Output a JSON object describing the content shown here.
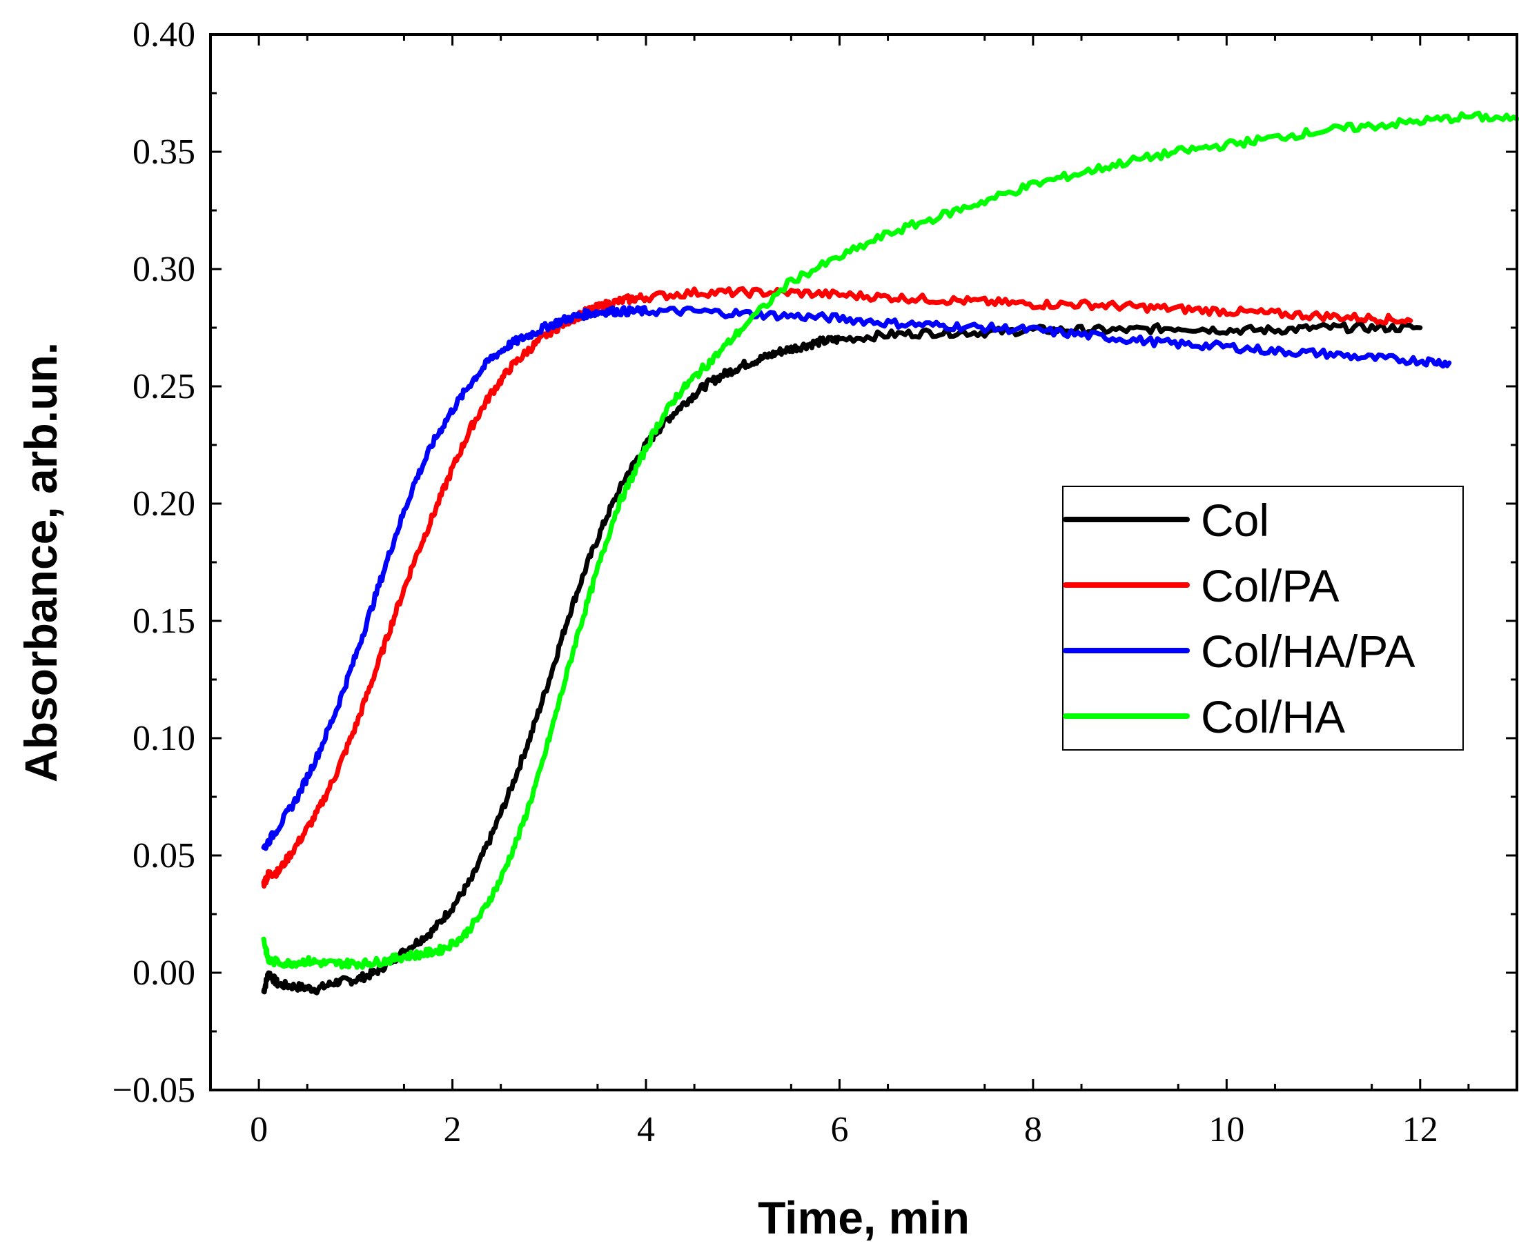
{
  "chart_data": {
    "type": "line",
    "title": "",
    "xlabel": "Time, min",
    "ylabel": "Absorbance, arb.un.",
    "xlim": [
      -0.5,
      13
    ],
    "ylim": [
      -0.05,
      0.4
    ],
    "xticks": [
      0,
      2,
      4,
      6,
      8,
      10,
      12
    ],
    "xtick_labels": [
      "0",
      "2",
      "4",
      "6",
      "8",
      "10",
      "12"
    ],
    "yticks": [
      -0.05,
      0.0,
      0.05,
      0.1,
      0.15,
      0.2,
      0.25,
      0.3,
      0.35,
      0.4
    ],
    "ytick_labels": [
      "−0.05",
      "0.00",
      "0.05",
      "0.10",
      "0.15",
      "0.20",
      "0.25",
      "0.30",
      "0.35",
      "0.40"
    ],
    "grid": false,
    "legend_position": "right-middle",
    "series": [
      {
        "name": "Col",
        "color": "#000000",
        "x": [
          0.05,
          0.1,
          0.2,
          0.4,
          0.6,
          0.8,
          1.0,
          1.2,
          1.4,
          1.6,
          1.8,
          2.0,
          2.2,
          2.4,
          2.6,
          2.8,
          3.0,
          3.2,
          3.4,
          3.6,
          3.8,
          4.0,
          4.2,
          4.4,
          4.6,
          4.8,
          5.0,
          5.2,
          5.4,
          5.6,
          5.8,
          6.0,
          6.5,
          7.0,
          7.5,
          8.0,
          8.5,
          9.0,
          9.5,
          10.0,
          10.5,
          11.0,
          11.5,
          12.0
        ],
        "y": [
          -0.008,
          0.0,
          -0.005,
          -0.006,
          -0.007,
          -0.004,
          -0.003,
          0.0,
          0.006,
          0.012,
          0.018,
          0.028,
          0.04,
          0.058,
          0.078,
          0.1,
          0.125,
          0.152,
          0.175,
          0.195,
          0.212,
          0.225,
          0.235,
          0.243,
          0.25,
          0.255,
          0.259,
          0.262,
          0.265,
          0.267,
          0.269,
          0.27,
          0.272,
          0.273,
          0.273,
          0.274,
          0.274,
          0.274,
          0.275,
          0.274,
          0.274,
          0.275,
          0.275,
          0.275
        ]
      },
      {
        "name": "Col/PA",
        "color": "#ff0000",
        "x": [
          0.05,
          0.1,
          0.2,
          0.4,
          0.6,
          0.8,
          1.0,
          1.2,
          1.4,
          1.6,
          1.8,
          2.0,
          2.2,
          2.4,
          2.6,
          2.8,
          3.0,
          3.2,
          3.4,
          3.6,
          3.8,
          4.0,
          4.5,
          5.0,
          5.5,
          6.0,
          6.5,
          7.0,
          7.5,
          8.0,
          8.5,
          9.0,
          9.5,
          10.0,
          10.5,
          11.0,
          11.5,
          11.9
        ],
        "y": [
          0.038,
          0.042,
          0.043,
          0.055,
          0.068,
          0.085,
          0.105,
          0.128,
          0.152,
          0.175,
          0.195,
          0.215,
          0.233,
          0.247,
          0.258,
          0.266,
          0.273,
          0.278,
          0.282,
          0.285,
          0.287,
          0.288,
          0.29,
          0.29,
          0.29,
          0.289,
          0.288,
          0.287,
          0.286,
          0.285,
          0.285,
          0.284,
          0.283,
          0.282,
          0.281,
          0.28,
          0.279,
          0.278
        ]
      },
      {
        "name": "Col/HA/PA",
        "color": "#0000ff",
        "x": [
          0.05,
          0.2,
          0.4,
          0.6,
          0.8,
          1.0,
          1.2,
          1.4,
          1.6,
          1.8,
          2.0,
          2.2,
          2.4,
          2.6,
          2.8,
          3.0,
          3.2,
          3.4,
          3.6,
          3.8,
          4.0,
          4.5,
          5.0,
          5.5,
          6.0,
          6.5,
          7.0,
          7.5,
          8.0,
          8.5,
          9.0,
          9.5,
          10.0,
          10.5,
          11.0,
          11.5,
          12.0,
          12.3
        ],
        "y": [
          0.053,
          0.062,
          0.075,
          0.092,
          0.112,
          0.135,
          0.16,
          0.185,
          0.208,
          0.226,
          0.24,
          0.252,
          0.262,
          0.268,
          0.272,
          0.276,
          0.279,
          0.281,
          0.282,
          0.282,
          0.282,
          0.282,
          0.281,
          0.28,
          0.279,
          0.277,
          0.276,
          0.275,
          0.274,
          0.272,
          0.27,
          0.268,
          0.267,
          0.265,
          0.264,
          0.262,
          0.261,
          0.26
        ]
      },
      {
        "name": "Col/HA",
        "color": "#00ff00",
        "x": [
          0.05,
          0.1,
          0.3,
          0.5,
          0.7,
          0.9,
          1.1,
          1.3,
          1.5,
          1.7,
          1.9,
          2.1,
          2.3,
          2.5,
          2.7,
          2.9,
          3.1,
          3.3,
          3.5,
          3.7,
          3.9,
          4.1,
          4.3,
          4.5,
          4.7,
          5.0,
          5.5,
          6.0,
          6.5,
          7.0,
          7.5,
          8.0,
          8.5,
          9.0,
          9.5,
          10.0,
          10.5,
          11.0,
          11.5,
          12.0,
          12.5,
          13.0
        ],
        "y": [
          0.014,
          0.005,
          0.004,
          0.005,
          0.004,
          0.004,
          0.004,
          0.005,
          0.007,
          0.008,
          0.01,
          0.015,
          0.025,
          0.04,
          0.06,
          0.085,
          0.115,
          0.145,
          0.172,
          0.198,
          0.215,
          0.232,
          0.245,
          0.254,
          0.262,
          0.275,
          0.295,
          0.305,
          0.315,
          0.322,
          0.329,
          0.336,
          0.341,
          0.346,
          0.35,
          0.353,
          0.356,
          0.359,
          0.361,
          0.363,
          0.365,
          0.364
        ]
      }
    ]
  }
}
